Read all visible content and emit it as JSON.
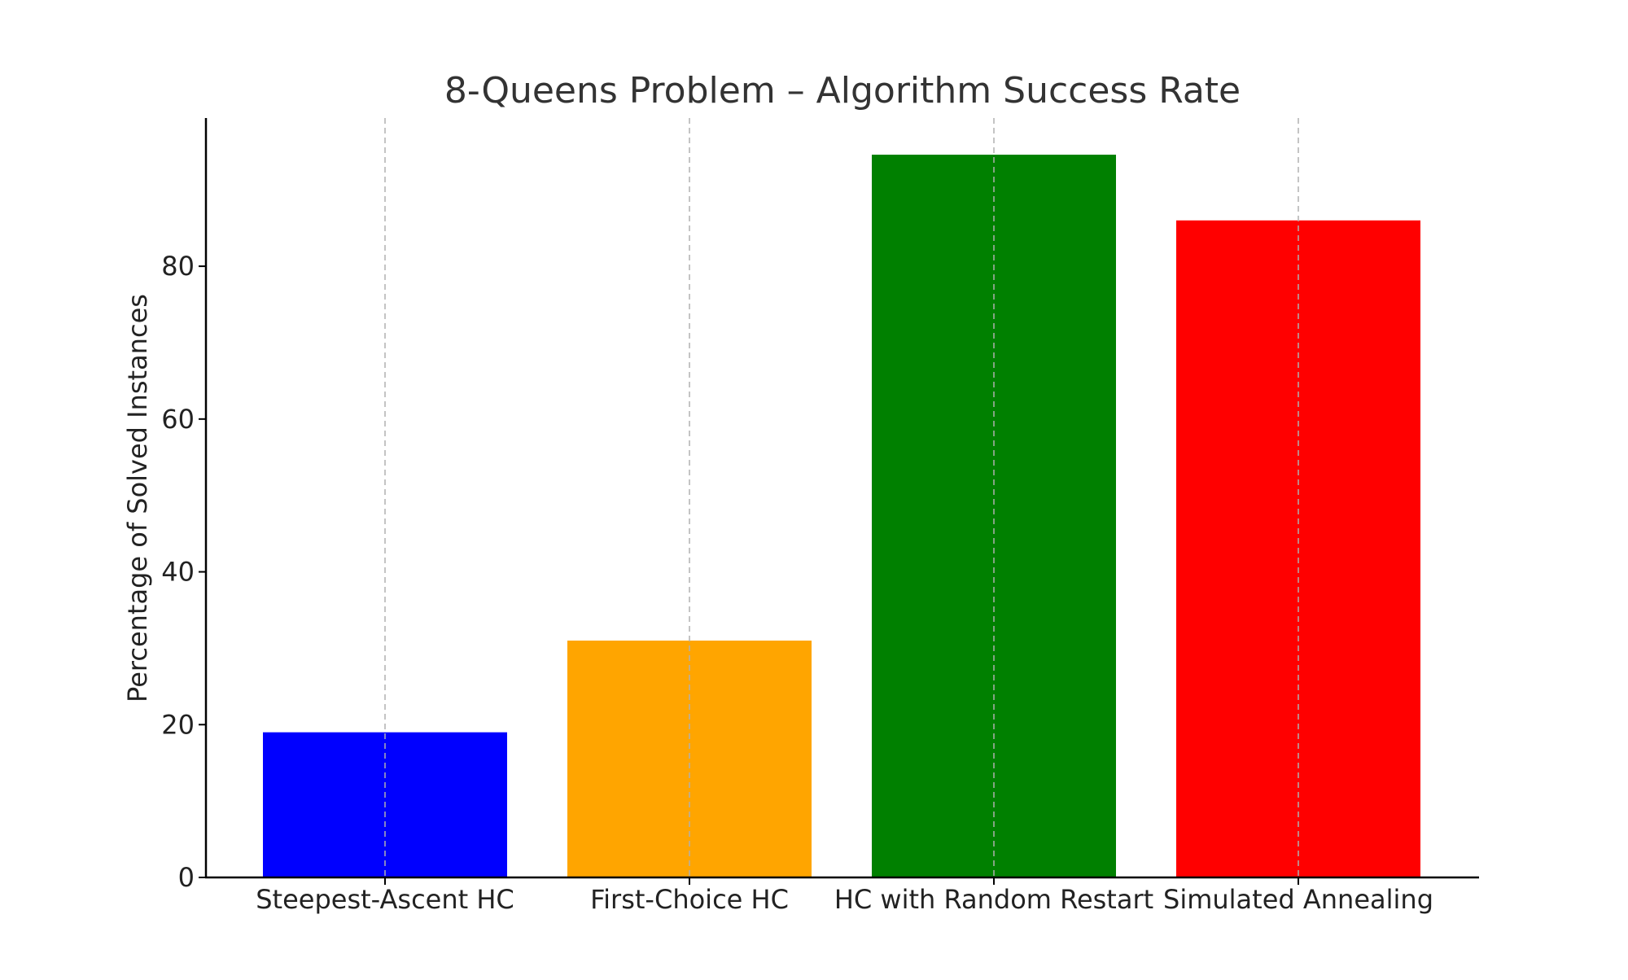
{
  "chart_data": {
    "type": "bar",
    "title": "8-Queens Problem – Algorithm Success Rate",
    "xlabel": "",
    "ylabel": "Percentage of Solved Instances",
    "categories": [
      "Steepest-Ascent HC",
      "First-Choice HC",
      "HC with Random Restart",
      "Simulated Annealing"
    ],
    "values": [
      19,
      31,
      94.6,
      86
    ],
    "colors": [
      "#0000ff",
      "#ffa500",
      "#008000",
      "#ff0000"
    ],
    "yticks": [
      0,
      20,
      40,
      60,
      80
    ],
    "ylim": [
      0,
      99.4
    ],
    "grid": "vertical-dashed",
    "legend": "none"
  }
}
